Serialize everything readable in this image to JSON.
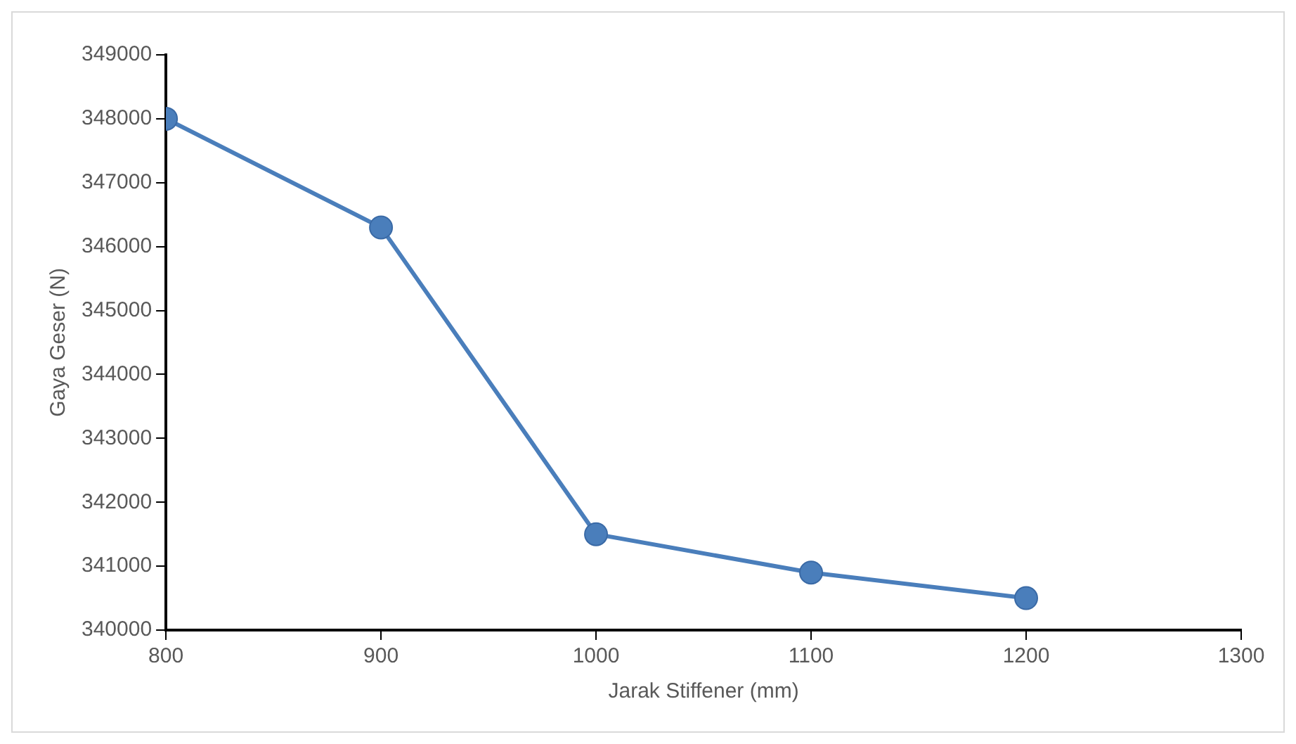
{
  "chart_data": {
    "type": "line",
    "xlabel": "Jarak Stiffener (mm)",
    "ylabel": "Gaya Geser (N)",
    "x": [
      800,
      900,
      1000,
      1100,
      1200
    ],
    "series": [
      {
        "color": "#4a7ebb",
        "values": [
          348000,
          346300,
          341500,
          340900,
          340500
        ]
      }
    ],
    "xlim": [
      800,
      1300
    ],
    "xticks": [
      800,
      900,
      1000,
      1100,
      1200,
      1300
    ],
    "ylim": [
      340000,
      349000
    ],
    "yticks": [
      340000,
      341000,
      342000,
      343000,
      344000,
      345000,
      346000,
      347000,
      348000,
      349000
    ],
    "grid": false,
    "legend": false,
    "marker": "circle",
    "line_style": "solid"
  }
}
